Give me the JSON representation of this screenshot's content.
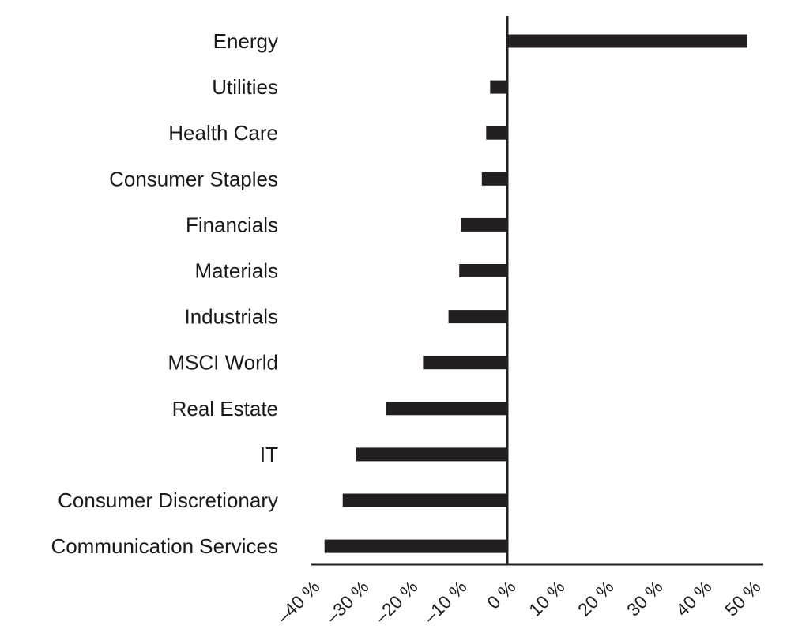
{
  "chart_data": {
    "type": "bar",
    "orientation": "horizontal",
    "categories": [
      "Energy",
      "Utilities",
      "Health Care",
      "Consumer Staples",
      "Financials",
      "Materials",
      "Industrials",
      "MSCI World",
      "Real Estate",
      "IT",
      "Consumer Discretionary",
      "Communication Services"
    ],
    "values": [
      49,
      -3.5,
      -4.3,
      -5.2,
      -9.5,
      -9.8,
      -12,
      -17.2,
      -24.8,
      -30.8,
      -33.6,
      -37.3
    ],
    "xlim": [
      -40,
      50
    ],
    "x_ticks": [
      -40,
      -30,
      -20,
      -10,
      0,
      10,
      20,
      30,
      40,
      50
    ],
    "x_tick_labels": [
      "–40 %",
      "–30 %",
      "–20 %",
      "–10 %",
      "0 %",
      "10 %",
      "20 %",
      "30 %",
      "40 %",
      "50 %"
    ],
    "title": "",
    "xlabel": "",
    "ylabel": "",
    "grid": false,
    "bar_color": "#231f20",
    "axis_color": "#231f20"
  }
}
